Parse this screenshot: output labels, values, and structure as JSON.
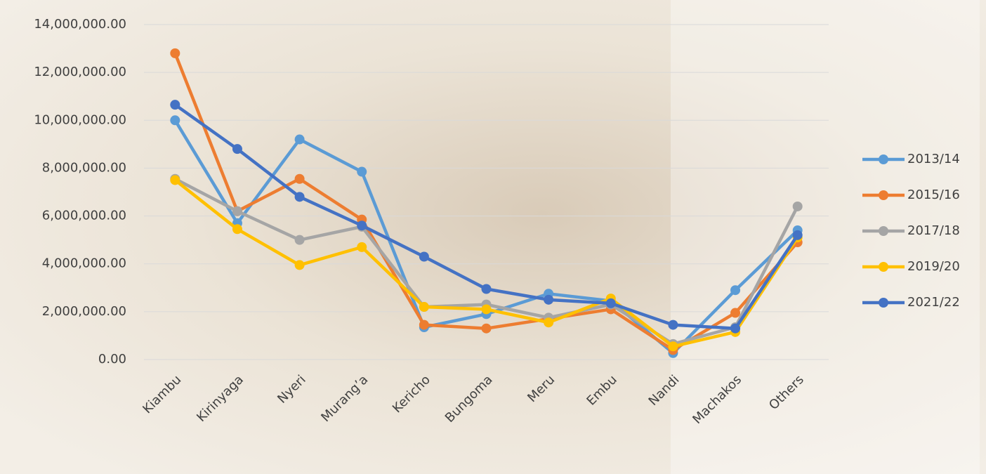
{
  "chart_data": {
    "type": "line",
    "categories": [
      "Kiambu",
      "Kirinyaga",
      "Nyeri",
      "Murang’a",
      "Kericho",
      "Bungoma",
      "Meru",
      "Embu",
      "Nandi",
      "Machakos",
      "Others"
    ],
    "series": [
      {
        "name": "2013/14",
        "color": "#5b9bd5",
        "values": [
          10000000,
          5700000,
          9200000,
          7850000,
          1350000,
          1900000,
          2750000,
          2450000,
          270000,
          2900000,
          5400000
        ]
      },
      {
        "name": "2015/16",
        "color": "#ed7d31",
        "values": [
          12800000,
          6200000,
          7550000,
          5850000,
          1450000,
          1300000,
          1700000,
          2100000,
          400000,
          1950000,
          4900000
        ]
      },
      {
        "name": "2017/18",
        "color": "#a5a5a5",
        "values": [
          7550000,
          6200000,
          5000000,
          5550000,
          2200000,
          2300000,
          1750000,
          2300000,
          650000,
          1350000,
          6400000
        ]
      },
      {
        "name": "2019/20",
        "color": "#ffc000",
        "values": [
          7500000,
          5450000,
          3950000,
          4700000,
          2200000,
          2100000,
          1550000,
          2550000,
          550000,
          1150000,
          5100000
        ]
      },
      {
        "name": "2021/22",
        "color": "#4472c4",
        "values": [
          10650000,
          8800000,
          6800000,
          5600000,
          4300000,
          2950000,
          2500000,
          2350000,
          1450000,
          1300000,
          5200000
        ]
      }
    ],
    "ylim": [
      0,
      14000000
    ],
    "yticks": [
      {
        "value": 0,
        "label": "0.00"
      },
      {
        "value": 2000000,
        "label": "2,000,000.00"
      },
      {
        "value": 4000000,
        "label": "4,000,000.00"
      },
      {
        "value": 6000000,
        "label": "6,000,000.00"
      },
      {
        "value": 8000000,
        "label": "8,000,000.00"
      },
      {
        "value": 10000000,
        "label": "10,000,000.00"
      },
      {
        "value": 12000000,
        "label": "12,000,000.00"
      },
      {
        "value": 14000000,
        "label": "14,000,000.00"
      }
    ],
    "grid": true,
    "legend": "right"
  }
}
